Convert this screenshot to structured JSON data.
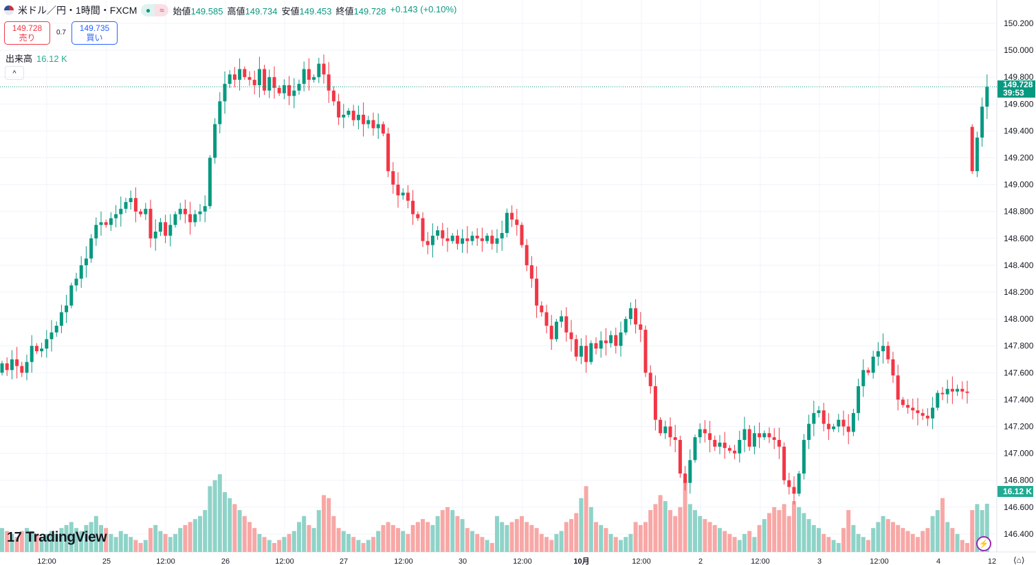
{
  "header": {
    "symbol": "米ドル／円・1時間・FXCM",
    "status_dot": "●",
    "status_wave": "≈",
    "open_label": "始値",
    "open": "149.585",
    "high_label": "高値",
    "high": "149.734",
    "low_label": "安値",
    "low": "149.453",
    "close_label": "終値",
    "close": "149.728",
    "change": "+0.143 (+0.10%)"
  },
  "trade": {
    "sell_price": "149.728",
    "sell_label": "売り",
    "spread": "0.7",
    "buy_price": "149.735",
    "buy_label": "買い"
  },
  "volume_legend": {
    "label": "出来高",
    "value": "16.12 K"
  },
  "collapse_icon": "^",
  "price_badge": {
    "price": "149.728",
    "countdown": "39:53"
  },
  "volume_badge": "16.12 K",
  "logo": {
    "mark": "17",
    "text": "TradingView"
  },
  "bolt_icon": "⚡",
  "settings_icon": "⟨⌂⟩",
  "colors": {
    "up": "#089981",
    "down": "#f23645",
    "vol_up": "#8fd3c8",
    "vol_down": "#f7a8a6"
  },
  "chart_data": {
    "type": "candlestick",
    "title": "米ドル／円・1時間・FXCM",
    "y_ticks": [
      "150.200",
      "150.000",
      "149.800",
      "149.600",
      "149.400",
      "149.200",
      "149.000",
      "148.800",
      "148.600",
      "148.400",
      "148.200",
      "148.000",
      "147.800",
      "147.600",
      "147.400",
      "147.200",
      "147.000",
      "146.800",
      "146.600",
      "146.400"
    ],
    "ylim": [
      146.4,
      150.2
    ],
    "x_ticks": [
      "12:00",
      "25",
      "12:00",
      "26",
      "12:00",
      "27",
      "12:00",
      "30",
      "12:00",
      "10月",
      "12:00",
      "2",
      "12:00",
      "3",
      "12:00",
      "4",
      "12"
    ],
    "first_open": 147.6,
    "closes": [
      147.67,
      147.62,
      147.7,
      147.65,
      147.6,
      147.68,
      147.8,
      147.76,
      147.78,
      147.85,
      147.9,
      147.95,
      148.05,
      148.1,
      148.25,
      148.3,
      148.4,
      148.45,
      148.6,
      148.7,
      148.72,
      148.7,
      148.75,
      148.78,
      148.82,
      148.87,
      148.9,
      148.8,
      148.78,
      148.82,
      148.6,
      148.65,
      148.72,
      148.62,
      148.7,
      148.78,
      148.82,
      148.78,
      148.72,
      148.78,
      148.8,
      148.84,
      149.2,
      149.45,
      149.62,
      149.75,
      149.82,
      149.78,
      149.86,
      149.8,
      149.78,
      149.74,
      149.86,
      149.7,
      149.8,
      149.72,
      149.68,
      149.74,
      149.66,
      149.7,
      149.75,
      149.86,
      149.78,
      149.8,
      149.9,
      149.82,
      149.7,
      149.62,
      149.5,
      149.52,
      149.55,
      149.48,
      149.52,
      149.45,
      149.48,
      149.42,
      149.45,
      149.38,
      149.1,
      149.0,
      148.92,
      148.94,
      148.88,
      148.78,
      148.75,
      148.58,
      148.55,
      148.62,
      148.66,
      148.6,
      148.58,
      148.62,
      148.56,
      148.6,
      148.58,
      148.62,
      148.6,
      148.58,
      148.62,
      148.56,
      148.6,
      148.64,
      148.79,
      148.74,
      148.7,
      148.55,
      148.4,
      148.3,
      148.1,
      148.05,
      147.95,
      147.85,
      147.98,
      148.02,
      147.9,
      147.85,
      147.72,
      147.8,
      147.68,
      147.82,
      147.78,
      147.84,
      147.82,
      147.88,
      147.8,
      147.9,
      148.0,
      148.08,
      147.96,
      147.92,
      147.6,
      147.5,
      147.25,
      147.15,
      147.2,
      147.12,
      147.1,
      146.85,
      146.78,
      146.95,
      147.12,
      147.18,
      147.15,
      147.1,
      147.05,
      147.08,
      147.04,
      147.02,
      147.0,
      147.1,
      147.18,
      147.05,
      147.15,
      147.12,
      147.15,
      147.12,
      147.1,
      147.05,
      146.8,
      146.75,
      146.7,
      146.85,
      147.1,
      147.22,
      147.3,
      147.32,
      147.22,
      147.18,
      147.2,
      147.25,
      147.2,
      147.16,
      147.3,
      147.5,
      147.62,
      147.6,
      147.72,
      147.76,
      147.8,
      147.7,
      147.58,
      147.4,
      147.36,
      147.34,
      147.32,
      147.3,
      147.28,
      147.26,
      147.34,
      147.45,
      147.44,
      147.48,
      147.46,
      147.48,
      147.46,
      147.45,
      149.1,
      149.35,
      149.58,
      149.728
    ],
    "gap_opens": {
      "196": 149.43
    },
    "volumes_k": [
      8,
      7,
      6,
      5,
      7,
      8,
      7,
      6,
      5,
      6,
      7,
      6,
      8,
      9,
      10,
      8,
      7,
      9,
      10,
      12,
      9,
      8,
      6,
      5,
      7,
      6,
      5,
      4,
      3,
      4,
      8,
      9,
      7,
      6,
      5,
      6,
      8,
      9,
      10,
      11,
      12,
      14,
      22,
      24,
      26,
      20,
      18,
      16,
      14,
      12,
      10,
      8,
      6,
      5,
      4,
      3,
      4,
      5,
      6,
      7,
      10,
      12,
      9,
      8,
      14,
      19,
      18,
      12,
      8,
      7,
      6,
      5,
      4,
      3,
      4,
      5,
      7,
      9,
      10,
      9,
      8,
      7,
      6,
      9,
      10,
      11,
      10,
      9,
      12,
      14,
      15,
      14,
      12,
      11,
      8,
      7,
      6,
      5,
      4,
      3,
      12,
      10,
      9,
      10,
      11,
      12,
      10,
      9,
      8,
      6,
      5,
      4,
      6,
      7,
      10,
      11,
      13,
      18,
      22,
      15,
      10,
      9,
      8,
      6,
      5,
      4,
      5,
      6,
      10,
      9,
      10,
      14,
      16,
      19,
      17,
      14,
      12,
      15,
      24,
      16,
      14,
      12,
      11,
      10,
      9,
      8,
      7,
      6,
      5,
      4,
      6,
      7,
      5,
      9,
      11,
      13,
      15,
      14,
      16,
      12,
      17,
      15,
      13,
      11,
      9,
      8,
      6,
      5,
      4,
      3,
      8,
      14,
      9,
      6,
      5,
      4,
      8,
      10,
      12,
      11,
      10,
      9,
      8,
      7,
      6,
      5,
      7,
      8,
      12,
      14,
      18,
      10,
      8,
      6,
      4,
      3,
      14,
      16,
      14,
      16.12
    ],
    "current_price": 149.728
  }
}
